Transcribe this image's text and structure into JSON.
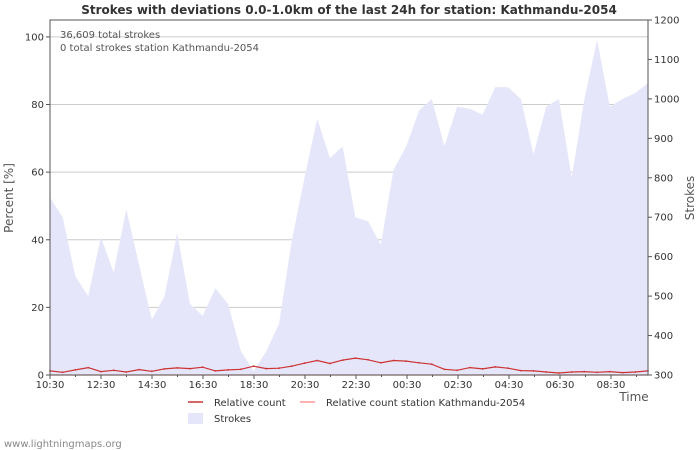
{
  "chart_data": {
    "type": "area",
    "title": "Strokes with deviations 0.0-1.0km of the last 24h for station: Kathmandu-2054",
    "xlabel": "Time",
    "ylabel_left": "Percent   [%]",
    "ylabel_right": "Strokes",
    "ylim_left": [
      0,
      105
    ],
    "ylim_right": [
      300,
      1200
    ],
    "left_ticks": [
      "0",
      "20",
      "40",
      "60",
      "80",
      "100"
    ],
    "right_ticks": [
      "300",
      "400",
      "500",
      "600",
      "700",
      "800",
      "900",
      "1000",
      "1100",
      "1200"
    ],
    "x_tick_labels": [
      "10:30",
      "12:30",
      "14:30",
      "16:30",
      "18:30",
      "20:30",
      "22:30",
      "00:30",
      "02:30",
      "04:30",
      "06:30",
      "08:30"
    ],
    "grid": true,
    "info_lines": [
      "36,609 total strokes",
      "0 total strokes station Kathmandu-2054"
    ],
    "series": [
      {
        "name": "Strokes",
        "axis": "right",
        "color": "#e6e6fa",
        "values": [
          750,
          700,
          550,
          500,
          650,
          560,
          720,
          580,
          440,
          500,
          660,
          480,
          450,
          520,
          480,
          360,
          310,
          360,
          430,
          640,
          800,
          950,
          850,
          880,
          700,
          690,
          630,
          820,
          880,
          970,
          1000,
          880,
          980,
          975,
          960,
          1030,
          1030,
          1000,
          860,
          980,
          1000,
          800,
          1000,
          1150,
          980,
          1000,
          1015,
          1040
        ]
      },
      {
        "name": "Relative count",
        "axis": "left",
        "color": "#cc3333",
        "values": [
          1.2,
          0.8,
          1.5,
          2.2,
          1.0,
          1.4,
          0.9,
          1.6,
          1.1,
          1.8,
          2.1,
          1.9,
          2.3,
          1.2,
          1.5,
          1.7,
          2.6,
          1.9,
          2.0,
          2.6,
          3.5,
          4.3,
          3.4,
          4.4,
          5.0,
          4.5,
          3.6,
          4.3,
          4.1,
          3.6,
          3.2,
          1.7,
          1.4,
          2.2,
          1.8,
          2.4,
          2.0,
          1.3,
          1.2,
          0.9,
          0.6,
          0.9,
          1.0,
          0.8,
          1.0,
          0.7,
          0.9,
          1.2
        ]
      },
      {
        "name": "Relative count station Kathmandu-2054",
        "axis": "left",
        "color": "#ff9999",
        "values": [
          0,
          0,
          0,
          0,
          0,
          0,
          0,
          0,
          0,
          0,
          0,
          0,
          0,
          0,
          0,
          0,
          0,
          0,
          0,
          0,
          0,
          0,
          0,
          0,
          0,
          0,
          0,
          0,
          0,
          0,
          0,
          0,
          0,
          0,
          0,
          0,
          0,
          0,
          0,
          0,
          0,
          0,
          0,
          0,
          0,
          0,
          0,
          0
        ]
      }
    ]
  },
  "legend": {
    "relative": "Relative count",
    "station": "Relative count station Kathmandu-2054",
    "strokes": "Strokes"
  },
  "footer": "www.lightningmaps.org"
}
